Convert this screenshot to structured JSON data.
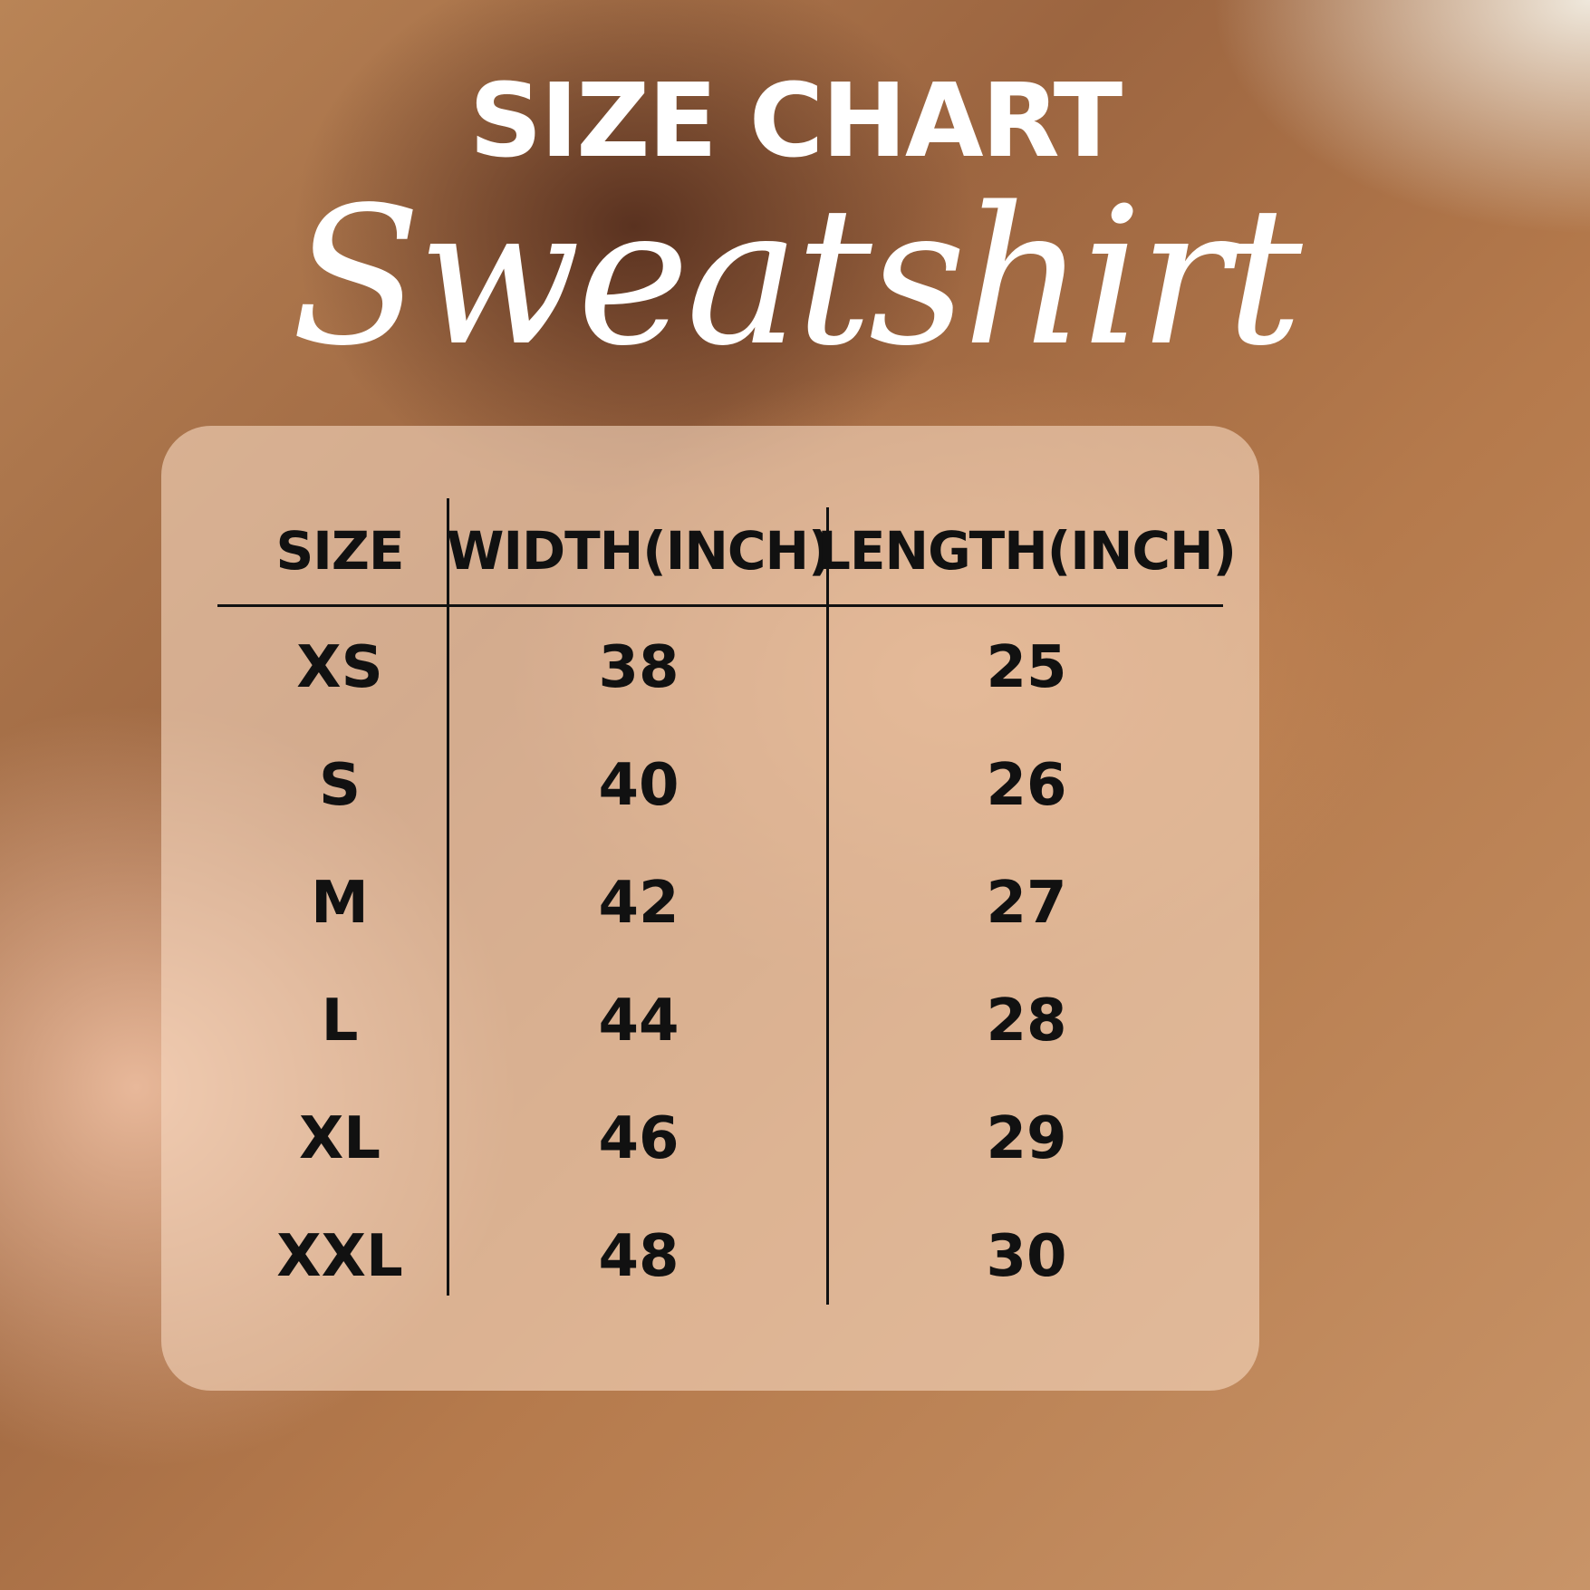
{
  "title": "SIZE CHART",
  "subtitle": "Sweatshirt",
  "chart_data": {
    "type": "table",
    "columns": [
      "SIZE",
      "WIDTH(INCH)",
      "LENGTH(INCH)"
    ],
    "rows": [
      [
        "XS",
        "38",
        "25"
      ],
      [
        "S",
        "40",
        "26"
      ],
      [
        "M",
        "42",
        "27"
      ],
      [
        "L",
        "44",
        "28"
      ],
      [
        "XL",
        "46",
        "29"
      ],
      [
        "XXL",
        "48",
        "30"
      ]
    ]
  },
  "colors": {
    "text": "#111111",
    "title": "#ffffff",
    "panel": "#f5d6be"
  }
}
